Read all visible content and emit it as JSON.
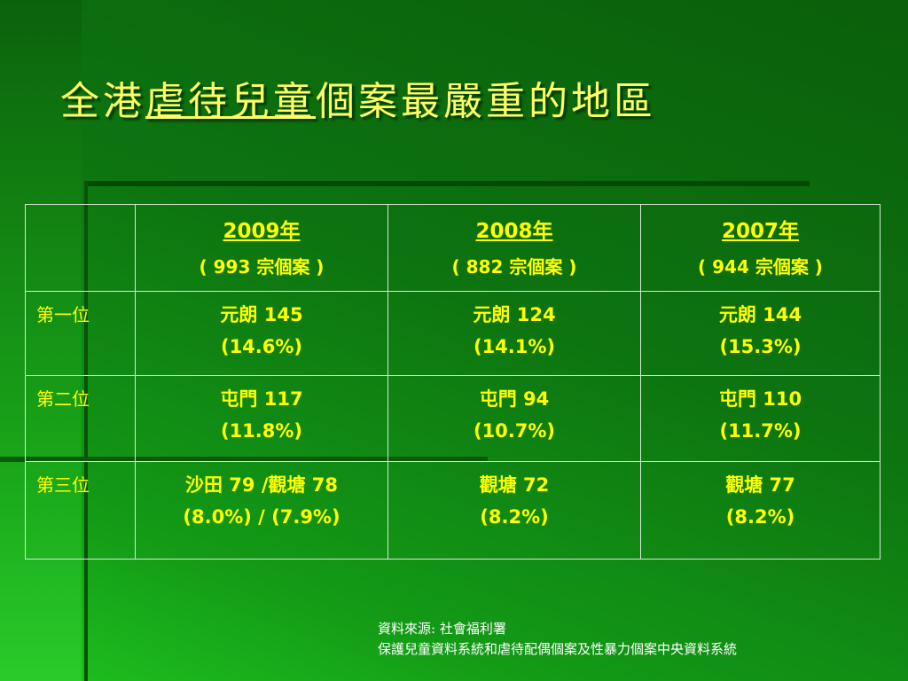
{
  "title": {
    "before": "全港",
    "underlined": "虐待兒童",
    "after": "個案最嚴重的地區"
  },
  "table": {
    "headers": [
      {
        "year": "2009年",
        "count": "( 993 宗個案 )"
      },
      {
        "year": "2008年",
        "count": "( 882 宗個案 )"
      },
      {
        "year": "2007年",
        "count": "( 944 宗個案 )"
      }
    ],
    "rows": [
      {
        "label": "第一位",
        "cells": [
          [
            "元朗 145",
            "(14.6%)"
          ],
          [
            "元朗 124",
            "(14.1%)"
          ],
          [
            "元朗 144",
            "(15.3%)"
          ]
        ]
      },
      {
        "label": "第二位",
        "cells": [
          [
            "屯門 117",
            "(11.8%)"
          ],
          [
            "屯門 94",
            "(10.7%)"
          ],
          [
            "屯門 110",
            "(11.7%)"
          ]
        ]
      },
      {
        "label": "第三位",
        "cells": [
          [
            "沙田 79 /觀塘 78",
            "(8.0%) / (7.9%)"
          ],
          [
            "觀塘 72",
            "(8.2%)"
          ],
          [
            "觀塘 77",
            "(8.2%)"
          ]
        ]
      }
    ]
  },
  "source": {
    "line1": "資料來源: 社會福利署",
    "line2": "保護兒童資料系統和虐待配偶個案及性暴力個案中央資料系統"
  }
}
